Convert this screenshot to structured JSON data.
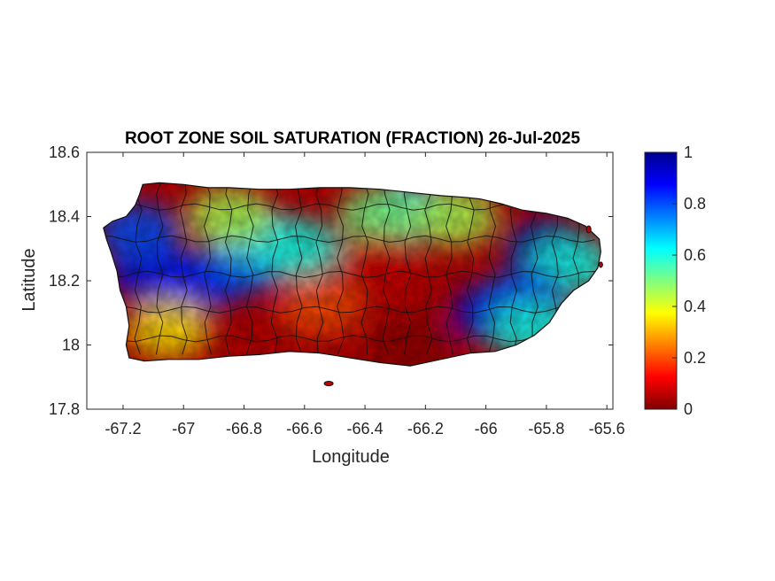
{
  "title": "ROOT ZONE SOIL SATURATION (FRACTION) 26-Jul-2025",
  "axes": {
    "xlabel": "Longitude",
    "ylabel": "Latitude",
    "xlim": [
      -67.32,
      -65.58
    ],
    "ylim": [
      17.8,
      18.6
    ],
    "x_ticks": [
      -67.2,
      -67,
      -66.8,
      -66.6,
      -66.4,
      -66.2,
      -66,
      -65.8,
      -65.6
    ],
    "x_tick_labels": [
      "-67.2",
      "-67",
      "-66.8",
      "-66.6",
      "-66.4",
      "-66.2",
      "-66",
      "-65.8",
      "-65.6"
    ],
    "y_ticks": [
      17.8,
      18,
      18.2,
      18.4,
      18.6
    ],
    "y_tick_labels": [
      "17.8",
      "18",
      "18.2",
      "18.4",
      "18.6"
    ]
  },
  "colorbar": {
    "colormap": "jet",
    "range": [
      0,
      1
    ],
    "ticks": [
      0,
      0.2,
      0.4,
      0.6,
      0.8,
      1
    ],
    "tick_labels": [
      "0",
      "0.2",
      "0.4",
      "0.6",
      "0.8",
      "1"
    ],
    "stops": [
      "#800000",
      "#ff0000",
      "#ff8000",
      "#ffff00",
      "#80ff80",
      "#00ffff",
      "#0080ff",
      "#0000ff",
      "#00008f"
    ]
  },
  "map": {
    "region": "Puerto Rico",
    "outline_color": "#111111",
    "hotspots": [
      {
        "lon": -67.1,
        "lat": 18.22,
        "value": 0.9
      },
      {
        "lon": -66.95,
        "lat": 18.2,
        "value": 0.85
      },
      {
        "lon": -67.15,
        "lat": 18.35,
        "value": 0.8
      },
      {
        "lon": -66.8,
        "lat": 18.25,
        "value": 0.8
      },
      {
        "lon": -66.75,
        "lat": 18.33,
        "value": 0.65
      },
      {
        "lon": -66.62,
        "lat": 18.3,
        "value": 0.6
      },
      {
        "lon": -66.85,
        "lat": 18.4,
        "value": 0.45
      },
      {
        "lon": -66.25,
        "lat": 18.42,
        "value": 0.65
      },
      {
        "lon": -66.35,
        "lat": 18.4,
        "value": 0.5
      },
      {
        "lon": -66.1,
        "lat": 18.4,
        "value": 0.45
      },
      {
        "lon": -65.8,
        "lat": 18.3,
        "value": 0.95
      },
      {
        "lon": -65.72,
        "lat": 18.25,
        "value": 0.6
      },
      {
        "lon": -65.97,
        "lat": 18.1,
        "value": 0.9
      },
      {
        "lon": -65.88,
        "lat": 18.14,
        "value": 0.8
      },
      {
        "lon": -65.85,
        "lat": 18.05,
        "value": 0.6
      },
      {
        "lon": -67.05,
        "lat": 18.05,
        "value": 0.35
      },
      {
        "lon": -66.55,
        "lat": 18.12,
        "value": 0.2
      },
      {
        "lon": -66.25,
        "lat": 18.0,
        "value": 0.02
      },
      {
        "lon": -66.35,
        "lat": 18.25,
        "value": 0.08
      }
    ]
  }
}
